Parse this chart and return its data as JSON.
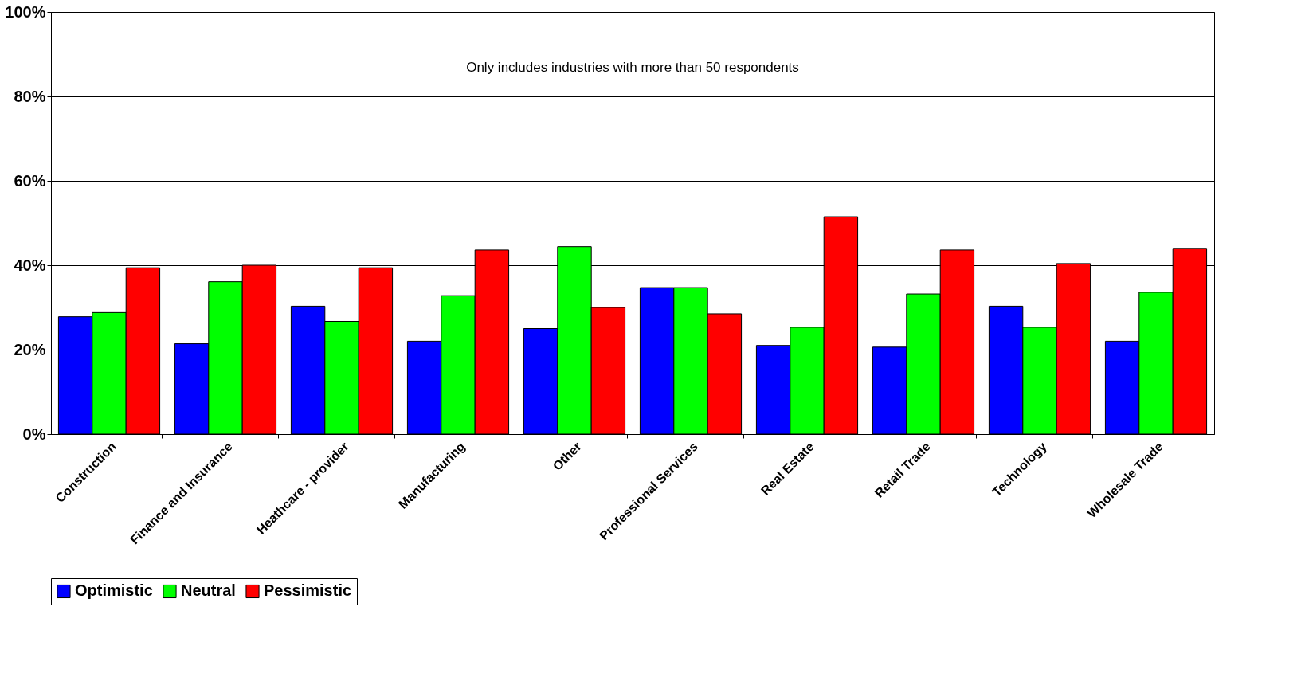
{
  "chart_data": {
    "type": "bar",
    "categories": [
      "Construction",
      "Finance and Insurance",
      "Heathcare - provider",
      "Manufacturing",
      "Other",
      "Professional Services",
      "Real Estate",
      "Retail Trade",
      "Technology",
      "Wholesale Trade"
    ],
    "series": [
      {
        "name": "Optimistic",
        "color": "#0000ff",
        "values": [
          27.8,
          21.4,
          30.3,
          22.0,
          25.0,
          34.7,
          21.0,
          20.6,
          30.3,
          22.0
        ]
      },
      {
        "name": "Neutral",
        "color": "#00ff00",
        "values": [
          28.8,
          36.1,
          26.7,
          32.8,
          44.4,
          34.7,
          25.3,
          33.2,
          25.3,
          33.6
        ]
      },
      {
        "name": "Pessimistic",
        "color": "#ff0000",
        "values": [
          39.4,
          40.0,
          39.4,
          43.6,
          30.0,
          28.5,
          51.5,
          43.6,
          40.4,
          44.0
        ]
      }
    ],
    "ylim": [
      0,
      100
    ],
    "yticks": [
      {
        "value": 0,
        "label": "0%"
      },
      {
        "value": 20,
        "label": "20%"
      },
      {
        "value": 40,
        "label": "40%"
      },
      {
        "value": 60,
        "label": "60%"
      },
      {
        "value": 80,
        "label": "80%"
      },
      {
        "value": 100,
        "label": "100%"
      }
    ],
    "annotations": [
      "Only includes industries with more than 50 respondents"
    ],
    "grid": "y",
    "legend": "bottom"
  }
}
